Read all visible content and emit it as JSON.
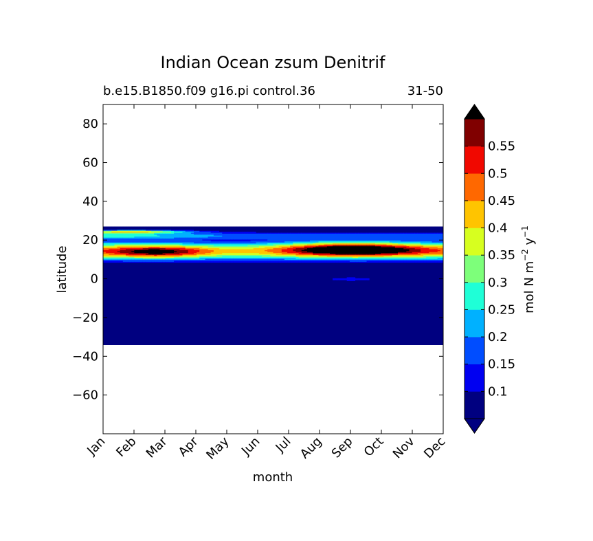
{
  "chart_data": {
    "type": "heatmap",
    "subtype": "filled-contour",
    "title": "Indian Ocean zsum Denitrif",
    "subtitle_left": "b.e15.B1850.f09 g16.pi control.36",
    "subtitle_right": "31-50",
    "xlabel": "month",
    "ylabel": "latitude",
    "x_categories": [
      "Jan",
      "Feb",
      "Mar",
      "Apr",
      "May",
      "Jun",
      "Jul",
      "Aug",
      "Sep",
      "Oct",
      "Nov",
      "Dec"
    ],
    "ylim": [
      -80,
      90
    ],
    "yticks": [
      80,
      60,
      40,
      20,
      0,
      -20,
      -40,
      -60
    ],
    "ytick_labels": [
      "80",
      "60",
      "40",
      "20",
      "0",
      "−20",
      "−40",
      "−60"
    ],
    "data_lat_range": [
      -34,
      27
    ],
    "colorbar": {
      "label_main": "mol N m",
      "label_exp1": "−2",
      "label_mid": " y",
      "label_exp2": "−1",
      "extend": "both",
      "levels": [
        0.05,
        0.1,
        0.15,
        0.2,
        0.25,
        0.3,
        0.35,
        0.4,
        0.45,
        0.5,
        0.55,
        0.6
      ],
      "tick_labels": [
        "0.1",
        "0.15",
        "0.2",
        "0.25",
        "0.3",
        "0.35",
        "0.4",
        "0.45",
        "0.5",
        "0.55"
      ],
      "under_color": "#000080",
      "over_color": "#000000",
      "colors": [
        "#000080",
        "#0000F1",
        "#004DFF",
        "#00B1FF",
        "#1FFFD7",
        "#7DFF7A",
        "#D7FF1F",
        "#FFC400",
        "#FF6800",
        "#F10800",
        "#800000"
      ]
    },
    "features": [
      {
        "name": "low background",
        "value": 0.03
      },
      {
        "name": "northern band",
        "lat": [
          10,
          27
        ],
        "value": 0.4
      },
      {
        "name": "Feb-Apr core",
        "month": "Feb-Apr",
        "lat": [
          12,
          18
        ],
        "value": 0.5
      },
      {
        "name": "Aug-Oct maximum",
        "month": "Jul-Nov",
        "lat": [
          12,
          20
        ],
        "value": 0.6
      }
    ]
  }
}
